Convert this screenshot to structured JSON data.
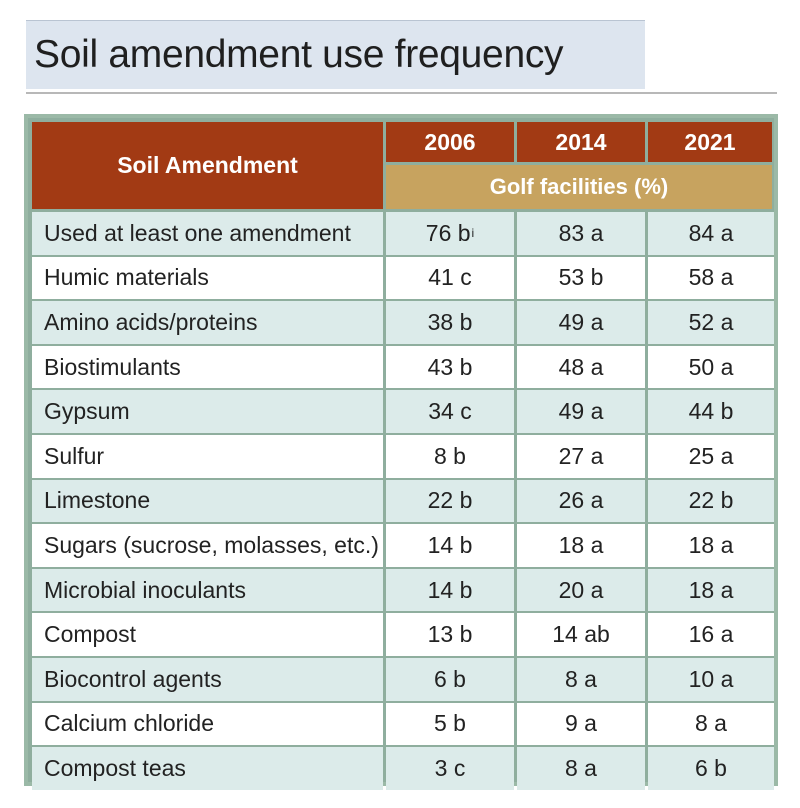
{
  "title": "Soil amendment use frequency",
  "table": {
    "header_amendment": "Soil Amendment",
    "years": [
      "2006",
      "2014",
      "2021"
    ],
    "subheader": "Golf facilities (%)",
    "rows": [
      {
        "name": "Used at least one amendment",
        "v2006": "76 b",
        "v2006_sup": "i",
        "v2014": "83 a",
        "v2021": "84 a"
      },
      {
        "name": "Humic materials",
        "v2006": "41 c",
        "v2014": "53 b",
        "v2021": "58 a"
      },
      {
        "name": "Amino acids/proteins",
        "v2006": "38 b",
        "v2014": "49 a",
        "v2021": "52 a"
      },
      {
        "name": "Biostimulants",
        "v2006": "43 b",
        "v2014": "48 a",
        "v2021": "50 a"
      },
      {
        "name": "Gypsum",
        "v2006": "34 c",
        "v2014": "49 a",
        "v2021": "44 b"
      },
      {
        "name": "Sulfur",
        "v2006": "8 b",
        "v2014": "27 a",
        "v2021": "25 a"
      },
      {
        "name": "Limestone",
        "v2006": "22 b",
        "v2014": "26 a",
        "v2021": "22 b"
      },
      {
        "name": "Sugars (sucrose, molasses, etc.)",
        "v2006": "14 b",
        "v2014": "18 a",
        "v2021": "18 a"
      },
      {
        "name": "Microbial inoculants",
        "v2006": "14 b",
        "v2014": "20 a",
        "v2021": "18 a"
      },
      {
        "name": "Compost",
        "v2006": "13 b",
        "v2014": "14 ab",
        "v2021": "16 a"
      },
      {
        "name": "Biocontrol agents",
        "v2006": "6 b",
        "v2014": "8 a",
        "v2021": "10 a"
      },
      {
        "name": "Calcium chloride",
        "v2006": "5 b",
        "v2014": "9 a",
        "v2021": "8 a"
      },
      {
        "name": "Compost teas",
        "v2006": "3 c",
        "v2014": "8 a",
        "v2021": "6 b"
      }
    ]
  },
  "colors": {
    "header_red": "#a23a14",
    "header_gold": "#c7a35f",
    "row_shade": "#dcebea",
    "grid_green": "#8fae9e",
    "title_band": "#dde5ef"
  }
}
